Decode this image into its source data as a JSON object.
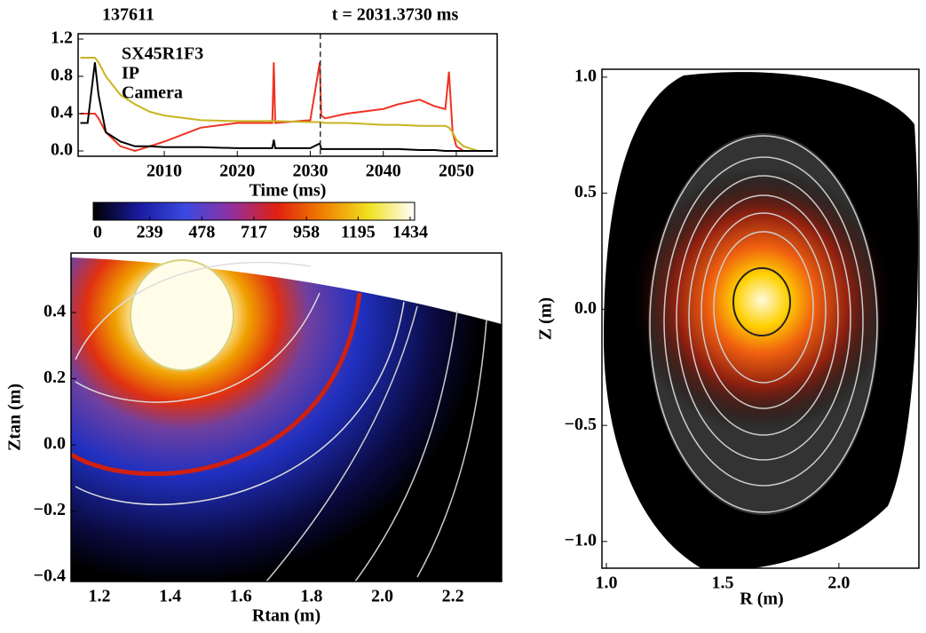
{
  "chart_data": [
    {
      "type": "line",
      "title": "137611",
      "subtitle": "t = 2031.3730 ms",
      "xlabel": "Time (ms)",
      "x": [
        1998.5,
        1999.5,
        2000.5,
        2001,
        2002,
        2004,
        2006,
        2008,
        2010,
        2015,
        2020,
        2024.8,
        2025,
        2025.2,
        2030,
        2031.3,
        2031.5,
        2032,
        2035,
        2040,
        2042,
        2045,
        2047,
        2048.5,
        2049,
        2049.5,
        2050,
        2051,
        2053,
        2055
      ],
      "series": [
        {
          "name": "SX45R1F3",
          "color": "#ee3322",
          "values": [
            0.4,
            0.4,
            0.4,
            0.35,
            0.2,
            0.05,
            0.0,
            0.05,
            0.1,
            0.25,
            0.3,
            0.3,
            0.95,
            0.3,
            0.33,
            0.95,
            0.38,
            0.35,
            0.4,
            0.45,
            0.5,
            0.55,
            0.48,
            0.45,
            0.85,
            0.2,
            0.05,
            0,
            null,
            null
          ]
        },
        {
          "name": "IP",
          "color": "#c8b420",
          "values": [
            1.0,
            1.0,
            1.0,
            0.95,
            0.8,
            0.6,
            0.5,
            0.42,
            0.38,
            0.33,
            0.32,
            0.32,
            0.32,
            0.32,
            0.31,
            0.31,
            0.31,
            0.3,
            0.3,
            0.28,
            0.28,
            0.27,
            0.27,
            0.27,
            0.25,
            0.2,
            0.12,
            0.05,
            0,
            0
          ]
        },
        {
          "name": "Camera",
          "color": "#000000",
          "values": [
            0.3,
            0.3,
            0.95,
            0.6,
            0.2,
            0.1,
            0.05,
            0.05,
            0.04,
            0.04,
            0.03,
            0.03,
            0.12,
            0.03,
            0.03,
            0.08,
            0.02,
            0.02,
            0.02,
            0.02,
            0.02,
            0.01,
            0.01,
            0,
            0,
            0,
            0,
            0,
            0,
            0
          ]
        }
      ],
      "cursor_x": 2031.373,
      "xlim": [
        1998.2,
        2055.6
      ],
      "xticks": [
        2010,
        2020,
        2030,
        2040,
        2050
      ],
      "ylim": [
        -0.057,
        1.257
      ],
      "yticks": [
        {
          "value": 0,
          "label": "0.0"
        },
        {
          "value": 0.4,
          "label": "0.4"
        },
        {
          "value": 0.8,
          "label": "0.8"
        },
        {
          "value": 1.2,
          "label": "1.2"
        }
      ]
    },
    {
      "type": "colorbar",
      "colors": [
        "#000000",
        "#1a1aa0",
        "#3a4ae0",
        "#9030a0",
        "#e02010",
        "#f08000",
        "#f0e020",
        "#ffffff"
      ],
      "xlim": [
        0,
        1434
      ],
      "xticks": [
        0,
        239,
        478,
        717,
        958,
        1195,
        1434
      ]
    },
    {
      "type": "image",
      "xlabel": "Rtan (m)",
      "ylabel": "Ztan (m)",
      "xlim": [
        1.1196,
        2.338
      ],
      "xticks": [
        1.2,
        1.4,
        1.6,
        1.8,
        {
          "value": 2,
          "label": "2.0"
        },
        2.2
      ],
      "ylim": [
        -0.413,
        0.58
      ],
      "yticks": [
        {
          "value": -0.4,
          "label": "−0.4"
        },
        {
          "value": -0.2,
          "label": "−0.2"
        },
        {
          "value": 0,
          "label": "0.0"
        },
        0.2,
        0.4
      ]
    },
    {
      "type": "image",
      "xlabel": "R (m)",
      "ylabel": "Z (m)",
      "xlim": [
        0.981,
        2.344
      ],
      "xticks": [
        {
          "value": 1,
          "label": "1.0"
        },
        1.5,
        {
          "value": 2,
          "label": "2.0"
        }
      ],
      "ylim": [
        -1.115,
        1.034
      ],
      "yticks": [
        {
          "value": -1,
          "label": "−1.0"
        },
        {
          "value": -0.5,
          "label": "−0.5"
        },
        {
          "value": 0,
          "label": "0.0"
        },
        0.5,
        {
          "value": 1,
          "label": "1.0"
        }
      ]
    }
  ]
}
